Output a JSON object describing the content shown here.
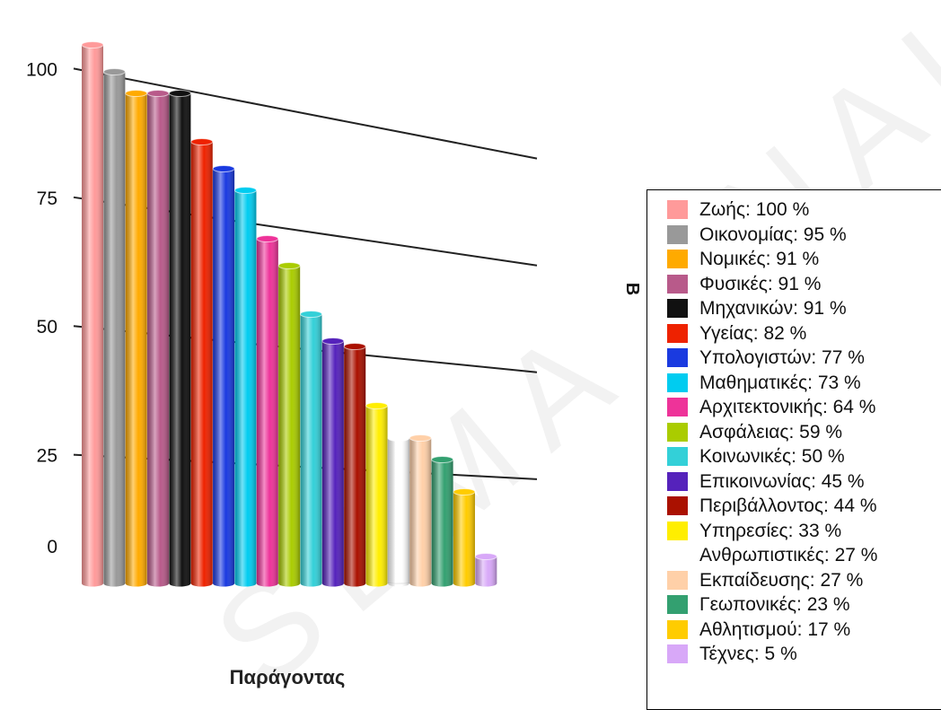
{
  "chart_data": {
    "type": "bar",
    "title": "",
    "xlabel": "Παράγοντας",
    "ylabel": "",
    "side_label": "B",
    "ylim": [
      0,
      100
    ],
    "yticks": [
      0,
      25,
      50,
      75,
      100
    ],
    "grid": true,
    "legend_position": "right",
    "categories": [
      "Ζωής",
      "Οικονομίας",
      "Νομικές",
      "Φυσικές",
      "Μηχανικών",
      "Υγείας",
      "Υπολογιστών",
      "Μαθηματικές",
      "Αρχιτεκτονικής",
      "Ασφάλειας",
      "Κοινωνικές",
      "Επικοινωνίας",
      "Περιβάλλοντος",
      "Υπηρεσίες",
      "Ανθρωπιστικές",
      "Εκπαίδευσης",
      "Γεωπονικές",
      "Αθλητισμού",
      "Τέχνες"
    ],
    "values": [
      100,
      95,
      91,
      91,
      91,
      82,
      77,
      73,
      64,
      59,
      50,
      45,
      44,
      33,
      27,
      27,
      23,
      17,
      5
    ],
    "colors": [
      "#ff9a9a",
      "#999999",
      "#ffaa00",
      "#b85a8a",
      "#111111",
      "#ee2200",
      "#1a3ae0",
      "#00ccf0",
      "#ee3399",
      "#aacc00",
      "#33d0d8",
      "#5522bb",
      "#aa1100",
      "#ffee00",
      "#ffffff",
      "#ffd0a8",
      "#33a070",
      "#ffcc00",
      "#d8a8f8"
    ],
    "legend": [
      "Ζωής: 100 %",
      "Οικονομίας: 95 %",
      "Νομικές: 91 %",
      "Φυσικές: 91 %",
      "Μηχανικών: 91 %",
      "Υγείας: 82 %",
      "Υπολογιστών: 77 %",
      "Μαθηματικές: 73 %",
      "Αρχιτεκτονικής: 64 %",
      "Ασφάλειας: 59 %",
      "Κοινωνικές: 50 %",
      "Επικοινωνίας: 45 %",
      "Περιβάλλοντος: 44 %",
      "Υπηρεσίες: 33 %",
      "Ανθρωπιστικές: 27 %",
      "Εκπαίδευσης: 27 %",
      "Γεωπονικές: 23 %",
      "Αθλητισμού: 17 %",
      "Τέχνες: 5 %"
    ]
  },
  "watermark": "SEMA ANAL S"
}
